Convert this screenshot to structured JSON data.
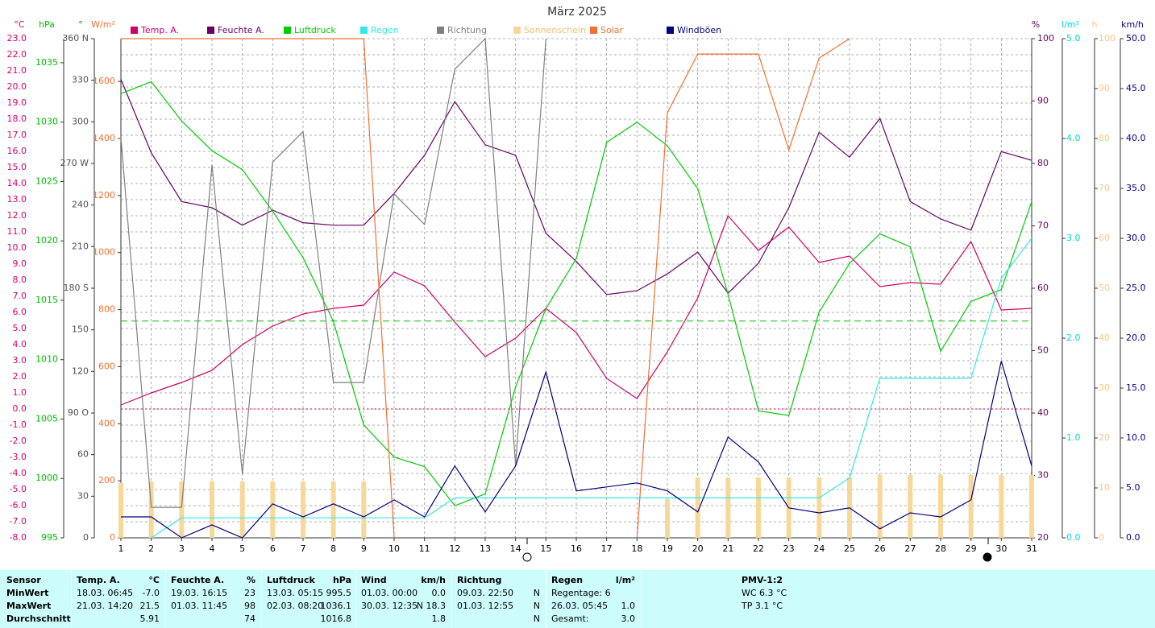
{
  "chart_data": {
    "type": "line",
    "title": "März 2025",
    "x": [
      1,
      2,
      3,
      4,
      5,
      6,
      7,
      8,
      9,
      10,
      11,
      12,
      13,
      14,
      15,
      16,
      17,
      18,
      19,
      20,
      21,
      22,
      23,
      24,
      25,
      26,
      27,
      28,
      29,
      30,
      31
    ],
    "xlim": [
      1,
      31
    ],
    "xticks": [
      1,
      2,
      3,
      4,
      5,
      6,
      7,
      8,
      9,
      10,
      11,
      12,
      13,
      14,
      15,
      16,
      17,
      18,
      19,
      20,
      21,
      22,
      23,
      24,
      25,
      26,
      27,
      28,
      29,
      30,
      31
    ],
    "grid": true,
    "axes": [
      {
        "unit": "°C",
        "color": "#e0006a",
        "lim": [
          -8,
          23
        ],
        "ticks": [
          {
            "value": -8,
            "label": "-8.0"
          },
          {
            "value": -7,
            "label": "-7.0"
          },
          {
            "value": -6,
            "label": "-6.0"
          },
          {
            "value": -5,
            "label": "-5.0"
          },
          {
            "value": -4,
            "label": "-4.0"
          },
          {
            "value": -3,
            "label": "-3.0"
          },
          {
            "value": -2,
            "label": "-2.0"
          },
          {
            "value": -1,
            "label": "-1.0"
          },
          {
            "value": 0,
            "label": "0.0"
          },
          {
            "value": 1,
            "label": "1.0"
          },
          {
            "value": 2,
            "label": "2.0"
          },
          {
            "value": 3,
            "label": "3.0"
          },
          {
            "value": 4,
            "label": "4.0"
          },
          {
            "value": 5,
            "label": "5.0"
          },
          {
            "value": 6,
            "label": "6.0"
          },
          {
            "value": 7,
            "label": "7.0"
          },
          {
            "value": 8,
            "label": "8.0"
          },
          {
            "value": 9,
            "label": "9.0"
          },
          {
            "value": 10,
            "label": "10.0"
          },
          {
            "value": 11,
            "label": "11.0"
          },
          {
            "value": 12,
            "label": "12.0"
          },
          {
            "value": 13,
            "label": "13.0"
          },
          {
            "value": 14,
            "label": "14.0"
          },
          {
            "value": 15,
            "label": "15.0"
          },
          {
            "value": 16,
            "label": "16.0"
          },
          {
            "value": 17,
            "label": "17.0"
          },
          {
            "value": 18,
            "label": "18.0"
          },
          {
            "value": 19,
            "label": "19.0"
          },
          {
            "value": 20,
            "label": "20.0"
          },
          {
            "value": 21,
            "label": "21.0"
          },
          {
            "value": 22,
            "label": "22.0"
          },
          {
            "value": 23,
            "label": "23.0"
          }
        ]
      },
      {
        "unit": "hPa",
        "color": "#00c000",
        "lim": [
          995,
          1037.03
        ],
        "ticks": [
          995,
          1000,
          1005,
          1010,
          1015,
          1020,
          1025,
          1030,
          1035
        ]
      },
      {
        "unit": "°",
        "color": "#505050",
        "lim": [
          0,
          360
        ],
        "ticks": [
          0,
          30,
          60,
          {
            "value": 90,
            "label": "90 O"
          },
          120,
          150,
          {
            "value": 180,
            "label": "180 S"
          },
          210,
          240,
          {
            "value": 270,
            "label": "270 W"
          },
          300,
          330,
          {
            "value": 360,
            "label": "360 N"
          }
        ]
      },
      {
        "unit": "W/m²",
        "color": "#f07030",
        "lim": [
          0,
          1750
        ],
        "ticks": [
          0,
          200,
          400,
          600,
          800,
          1000,
          1200,
          1400,
          1600
        ]
      },
      {
        "unit": "%",
        "color": "#660066",
        "lim": [
          20,
          100
        ],
        "ticks": [
          20,
          30,
          40,
          50,
          60,
          70,
          80,
          90,
          100
        ]
      },
      {
        "unit": "l/m²",
        "color": "#00d8d8",
        "lim": [
          0,
          5
        ],
        "ticks": [
          {
            "value": 0,
            "label": "0.0"
          },
          {
            "value": 1,
            "label": "1.0"
          },
          {
            "value": 2,
            "label": "2.0"
          },
          {
            "value": 3,
            "label": "3.0"
          },
          {
            "value": 4,
            "label": "4.0"
          },
          {
            "value": 5,
            "label": "5.0"
          }
        ]
      },
      {
        "unit": "h",
        "color": "#f8c880",
        "lim": [
          0,
          100
        ],
        "ticks": [
          0,
          10,
          20,
          30,
          40,
          50,
          60,
          70,
          80,
          90,
          100
        ]
      },
      {
        "unit": "km/h",
        "color": "#000080",
        "lim": [
          0,
          50
        ],
        "ticks": [
          {
            "value": 0,
            "label": "0.0"
          },
          {
            "value": 5,
            "label": "5.0"
          },
          {
            "value": 10,
            "label": "10.0"
          },
          {
            "value": 15,
            "label": "15.0"
          },
          {
            "value": 20,
            "label": "20.0"
          },
          {
            "value": 25,
            "label": "25.0"
          },
          {
            "value": 30,
            "label": "30.0"
          },
          {
            "value": 35,
            "label": "35.0"
          },
          {
            "value": 40,
            "label": "40.0"
          },
          {
            "value": 45,
            "label": "45.0"
          },
          {
            "value": 50,
            "label": "50.0"
          }
        ]
      }
    ],
    "reference_lines": [
      {
        "axis": 1,
        "value": 1013.25,
        "color": "#00c000"
      },
      {
        "axis": 0,
        "value": 0,
        "color": "#cc0066"
      }
    ],
    "series": [
      {
        "name": "Temp. A.",
        "color": "#cc0066",
        "axis": 0,
        "values": [
          0.25,
          1.0,
          1.65,
          2.4,
          4.0,
          5.15,
          5.9,
          6.25,
          6.45,
          8.5,
          7.65,
          5.4,
          3.25,
          4.4,
          6.25,
          4.75,
          1.9,
          0.65,
          3.55,
          6.9,
          12.0,
          9.85,
          11.3,
          9.1,
          9.5,
          7.6,
          7.85,
          7.75,
          10.4,
          6.15,
          6.25
        ]
      },
      {
        "name": "Feuchte A.",
        "color": "#660066",
        "axis": 4,
        "values": [
          93.5,
          81.7,
          73.9,
          72.9,
          70.1,
          72.5,
          70.5,
          70.1,
          70.1,
          75.2,
          81.3,
          89.9,
          83.0,
          81.3,
          68.8,
          64.3,
          59.0,
          59.6,
          62.3,
          65.8,
          59.2,
          64.0,
          72.9,
          85.0,
          81.0,
          87.2,
          73.9,
          71.1,
          69.3,
          81.9,
          80.5
        ]
      },
      {
        "name": "Luftdruck",
        "color": "#00cc00",
        "axis": 1,
        "values": [
          1032.4,
          1033.4,
          1030.1,
          1027.6,
          1026.0,
          1022.5,
          1018.6,
          1013.2,
          1004.5,
          1001.8,
          1001.0,
          997.7,
          998.7,
          1007.7,
          1014.3,
          1018.5,
          1028.3,
          1030.0,
          1028.0,
          1024.4,
          1015.5,
          1005.7,
          1005.3,
          1014.0,
          1018.1,
          1020.6,
          1019.5,
          1010.7,
          1014.9,
          1015.9,
          1023.3
        ]
      },
      {
        "name": "Regen",
        "color": "#33e8e8",
        "axis": 5,
        "values": [
          null,
          0,
          0.2,
          0.2,
          0.2,
          0.2,
          0.2,
          0.2,
          0.2,
          0.2,
          0.2,
          0.4,
          0.4,
          0.4,
          0.4,
          0.4,
          0.4,
          0.4,
          0.4,
          0.4,
          0.4,
          0.4,
          0.4,
          0.4,
          0.6,
          1.6,
          1.6,
          1.6,
          1.6,
          2.6,
          3.0
        ]
      },
      {
        "name": "Richtung",
        "color": "#808080",
        "axis": 2,
        "values": [
          289,
          22,
          22,
          269,
          46,
          271,
          293,
          112,
          112,
          248,
          226,
          338,
          360,
          52,
          360,
          null,
          null,
          null,
          null,
          null,
          null,
          null,
          null,
          null,
          null,
          null,
          null,
          null,
          null,
          null,
          null
        ]
      },
      {
        "name": "Sonnenschein",
        "color": "#f8d898",
        "axis": 6,
        "type": "bar",
        "values": [
          11,
          11.3,
          11.3,
          11.3,
          11.3,
          11.3,
          11.3,
          11.3,
          11.3,
          null,
          null,
          null,
          null,
          null,
          null,
          null,
          null,
          null,
          7.7,
          12.1,
          12.1,
          12.1,
          12.1,
          12.1,
          12.1,
          12.6,
          12.6,
          12.6,
          12.6,
          12.6,
          12.6
        ]
      },
      {
        "name": "Solar",
        "color": "#f07030",
        "axis": 3,
        "values": [
          1750,
          1750,
          1750,
          1750,
          1750,
          1750,
          1750,
          1750,
          1750,
          0,
          null,
          null,
          null,
          null,
          null,
          null,
          null,
          0,
          1490,
          1696,
          1696,
          1696,
          1360,
          1682,
          1750,
          null,
          null,
          null,
          null,
          null,
          null
        ]
      },
      {
        "name": "Windböen",
        "color": "#000080",
        "axis": 7,
        "values": [
          2.1,
          2.1,
          0,
          1.3,
          0,
          3.4,
          2.1,
          3.4,
          2.1,
          3.8,
          2.1,
          7.2,
          2.6,
          7.2,
          16.6,
          4.7,
          5.1,
          5.5,
          4.7,
          2.6,
          10.1,
          7.6,
          3.0,
          2.5,
          3.0,
          0.9,
          2.5,
          2.1,
          3.8,
          17.7,
          7.2
        ]
      }
    ]
  },
  "stats": {
    "row_labels": [
      "Sensor",
      "MinWert",
      "MaxWert",
      "Durchschnitt"
    ],
    "columns": [
      {
        "name": "Temp. A.",
        "unit": "°C",
        "min": {
          "time": "18.03. 06:45",
          "value": "-7.0"
        },
        "max": {
          "time": "21.03. 14:20",
          "value": "21.5"
        },
        "avg": {
          "value": "5.91"
        }
      },
      {
        "name": "Feuchte A.",
        "unit": "%",
        "min": {
          "time": "19.03. 16:15",
          "value": "23"
        },
        "max": {
          "time": "01.03. 11:45",
          "value": "98"
        },
        "avg": {
          "value": "74"
        }
      },
      {
        "name": "Luftdruck",
        "unit": "hPa",
        "min": {
          "time": "13.03. 05:15",
          "value": "995.5"
        },
        "max": {
          "time": "02.03. 08:20",
          "value": "1036.1"
        },
        "avg": {
          "value": "1016.8"
        }
      },
      {
        "name": "Wind",
        "unit": "km/h",
        "min": {
          "time": "01.03. 00:00",
          "value": "0.0"
        },
        "max": {
          "time": "30.03. 12:35",
          "value": "N 18.3"
        },
        "avg": {
          "value": "1.8"
        }
      },
      {
        "name": "Richtung",
        "min": {
          "time": "09.03. 22:50",
          "value": "N"
        },
        "max": {
          "time": "01.03. 12:55",
          "value": "N"
        },
        "avg": {
          "value": "N"
        }
      },
      {
        "name": "Regen",
        "unit": "l/m²",
        "min": {
          "time": "Regentage: 6"
        },
        "max": {
          "time": "26.03. 05:45",
          "value": "1.0"
        },
        "avg": {
          "time": "Gesamt:",
          "value": "3.0"
        }
      }
    ],
    "pmv": {
      "title": "PMV-1:2",
      "lines": [
        "WC 6.3 °C",
        "TP 3.1 °C"
      ]
    }
  }
}
